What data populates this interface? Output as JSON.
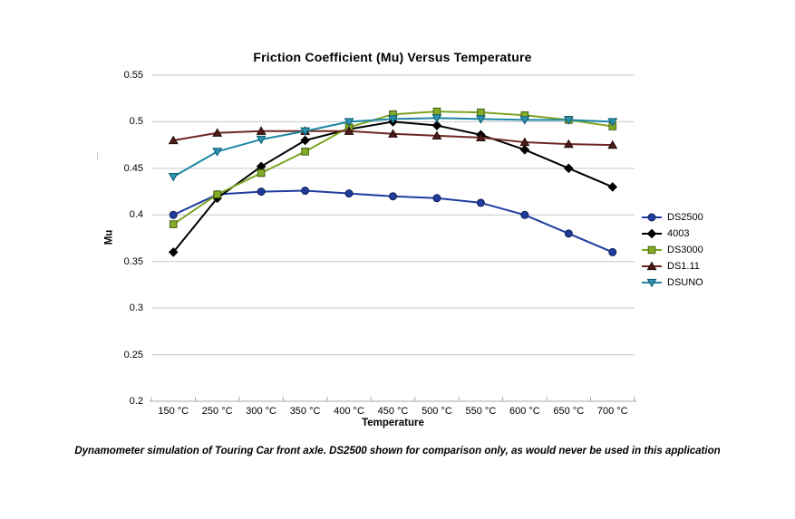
{
  "chart_data": {
    "type": "line",
    "title": "Friction Coefficient (Mu) Versus Temperature",
    "xlabel": "Temperature",
    "ylabel": "Mu",
    "ylim": [
      0.2,
      0.55
    ],
    "y_tick_step": 0.05,
    "y_tick_labels": [
      "0.55",
      "0.5",
      "0.45",
      "0.4",
      "0.35",
      "0.3",
      "0.25",
      "0.2"
    ],
    "grid": true,
    "legend_position": "right",
    "categories": [
      "150 °C",
      "250 °C",
      "300 °C",
      "350 °C",
      "400 °C",
      "450 °C",
      "500 °C",
      "550 °C",
      "600 °C",
      "650 °C",
      "700 °C"
    ],
    "series": [
      {
        "name": "DS2500",
        "marker": "circle",
        "color": "#1F3C9E",
        "marker_fill": "#1F3C9E",
        "marker_stroke": "#101F55",
        "values": [
          0.4,
          0.422,
          0.425,
          0.426,
          0.423,
          0.42,
          0.418,
          0.413,
          0.4,
          0.38,
          0.36
        ]
      },
      {
        "name": "4003",
        "marker": "diamond",
        "color": "#000000",
        "marker_fill": "#000000",
        "marker_stroke": "#000000",
        "values": [
          0.36,
          0.418,
          0.452,
          0.48,
          0.492,
          0.5,
          0.496,
          0.486,
          0.47,
          0.45,
          0.43
        ]
      },
      {
        "name": "DS3000",
        "marker": "square",
        "color": "#7CA322",
        "marker_fill": "#84AC28",
        "marker_stroke": "#42600F",
        "values": [
          0.39,
          0.422,
          0.445,
          0.468,
          0.494,
          0.508,
          0.511,
          0.51,
          0.507,
          0.502,
          0.495
        ]
      },
      {
        "name": "DS1.11",
        "marker": "triangle-up",
        "color": "#6D2822",
        "marker_fill": "#4E1A15",
        "marker_stroke": "#250C0A",
        "values": [
          0.48,
          0.488,
          0.49,
          0.49,
          0.49,
          0.487,
          0.485,
          0.483,
          0.478,
          0.476,
          0.475
        ]
      },
      {
        "name": "DSUNO",
        "marker": "triangle-down",
        "color": "#1D87A6",
        "marker_fill": "#2E93AE",
        "marker_stroke": "#0E5A74",
        "values": [
          0.441,
          0.468,
          0.481,
          0.49,
          0.5,
          0.503,
          0.504,
          0.503,
          0.502,
          0.502,
          0.5
        ]
      }
    ]
  },
  "caption": "Dynamometer simulation of Touring Car front axle. DS2500 shown for comparison only, as would never be used in this application",
  "colors": {
    "background": "#FFFFFF",
    "gridline": "#C9C9C9",
    "axis": "#A8A8A8",
    "text": "#000000"
  }
}
